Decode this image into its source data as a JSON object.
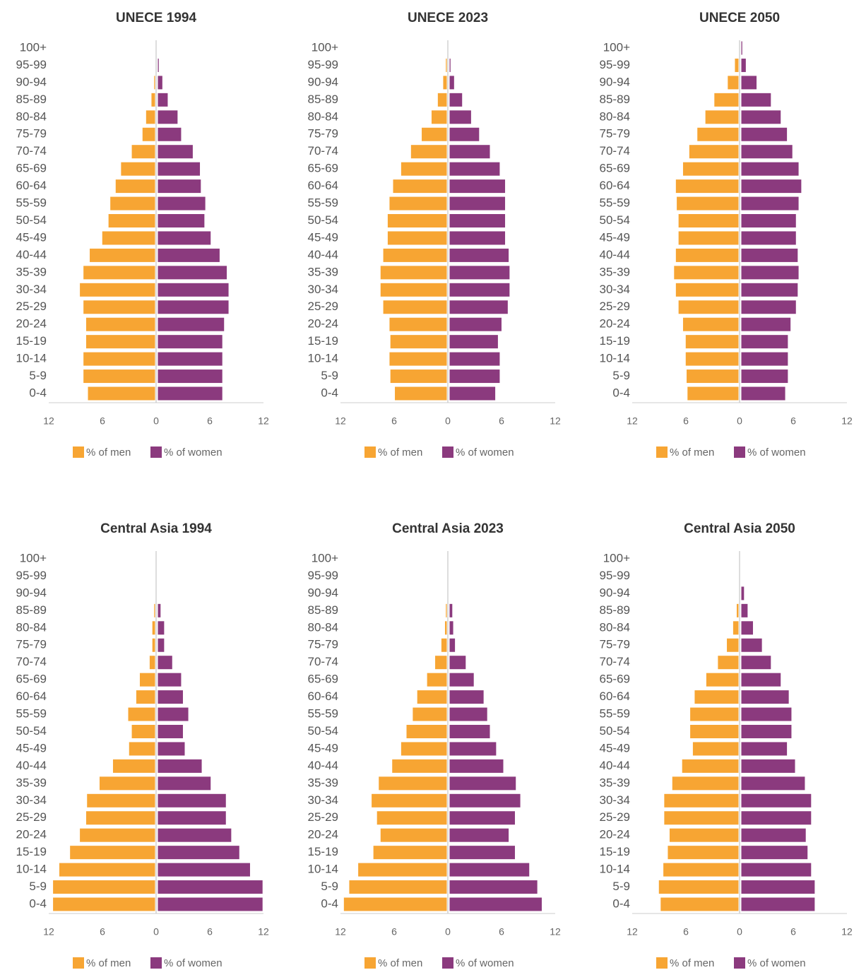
{
  "chart_data": [
    {
      "type": "pyramid",
      "title": "UNECE 1994",
      "categories": [
        "100+",
        "95-99",
        "90-94",
        "85-89",
        "80-84",
        "75-79",
        "70-74",
        "65-69",
        "60-64",
        "55-59",
        "50-54",
        "45-49",
        "40-44",
        "35-39",
        "30-34",
        "25-29",
        "20-24",
        "15-19",
        "10-14",
        "5-9",
        "0-4"
      ],
      "series": [
        {
          "name": "% of men",
          "color": "#f7a533",
          "values": [
            0,
            0,
            -0.1,
            -0.4,
            -1.0,
            -1.4,
            -2.6,
            -3.8,
            -4.4,
            -5.0,
            -5.2,
            -5.9,
            -7.3,
            -8.0,
            -8.4,
            -8.0,
            -7.7,
            -7.7,
            -8.0,
            -8.0,
            -7.5
          ]
        },
        {
          "name": "% of women",
          "color": "#8b3a7e",
          "values": [
            0,
            0.1,
            0.5,
            1.1,
            2.2,
            2.6,
            3.9,
            4.7,
            4.8,
            5.3,
            5.2,
            5.9,
            6.9,
            7.7,
            7.9,
            7.9,
            7.4,
            7.2,
            7.2,
            7.2,
            7.2
          ]
        }
      ],
      "xlim": [
        -12,
        12
      ],
      "xticks": [
        {
          "value": -12,
          "label": "12"
        },
        {
          "value": -6,
          "label": "6"
        },
        0,
        6,
        12
      ]
    },
    {
      "type": "pyramid",
      "title": "UNECE 2023",
      "categories": [
        "100+",
        "95-99",
        "90-94",
        "85-89",
        "80-84",
        "75-79",
        "70-74",
        "65-69",
        "60-64",
        "55-59",
        "50-54",
        "45-49",
        "40-44",
        "35-39",
        "30-34",
        "25-29",
        "20-24",
        "15-19",
        "10-14",
        "5-9",
        "0-4"
      ],
      "series": [
        {
          "name": "% of men",
          "color": "#f7a533",
          "values": [
            0,
            -0.1,
            -0.4,
            -1.0,
            -1.7,
            -2.8,
            -4.0,
            -5.1,
            -6.0,
            -6.4,
            -6.6,
            -6.6,
            -7.1,
            -7.4,
            -7.4,
            -7.1,
            -6.4,
            -6.3,
            -6.4,
            -6.3,
            -5.8
          ]
        },
        {
          "name": "% of women",
          "color": "#8b3a7e",
          "values": [
            0,
            0.1,
            0.5,
            1.4,
            2.4,
            3.3,
            4.5,
            5.6,
            6.2,
            6.2,
            6.2,
            6.2,
            6.6,
            6.7,
            6.7,
            6.5,
            5.8,
            5.4,
            5.6,
            5.6,
            5.1
          ]
        }
      ],
      "xlim": [
        -12,
        12
      ],
      "xticks": [
        {
          "value": -12,
          "label": "12"
        },
        {
          "value": -6,
          "label": "6"
        },
        0,
        6,
        12
      ]
    },
    {
      "type": "pyramid",
      "title": "UNECE 2050",
      "categories": [
        "100+",
        "95-99",
        "90-94",
        "85-89",
        "80-84",
        "75-79",
        "70-74",
        "65-69",
        "60-64",
        "55-59",
        "50-54",
        "45-49",
        "40-44",
        "35-39",
        "30-34",
        "25-29",
        "20-24",
        "15-19",
        "10-14",
        "5-9",
        "0-4"
      ],
      "series": [
        {
          "name": "% of men",
          "color": "#f7a533",
          "values": [
            0,
            -0.4,
            -1.2,
            -2.7,
            -3.7,
            -4.6,
            -5.5,
            -6.2,
            -7.0,
            -6.9,
            -6.7,
            -6.7,
            -7.0,
            -7.2,
            -7.0,
            -6.7,
            -6.2,
            -5.9,
            -5.9,
            -5.8,
            -5.7
          ]
        },
        {
          "name": "% of women",
          "color": "#8b3a7e",
          "values": [
            0.1,
            0.5,
            1.7,
            3.3,
            4.4,
            5.1,
            5.7,
            6.4,
            6.7,
            6.4,
            6.1,
            6.1,
            6.3,
            6.4,
            6.3,
            6.1,
            5.5,
            5.2,
            5.2,
            5.2,
            4.9
          ]
        }
      ],
      "xlim": [
        -12,
        12
      ],
      "xticks": [
        {
          "value": -12,
          "label": "12"
        },
        {
          "value": -6,
          "label": "6"
        },
        0,
        6,
        12
      ]
    },
    {
      "type": "pyramid",
      "title": "Central Asia 1994",
      "categories": [
        "100+",
        "95-99",
        "90-94",
        "85-89",
        "80-84",
        "75-79",
        "70-74",
        "65-69",
        "60-64",
        "55-59",
        "50-54",
        "45-49",
        "40-44",
        "35-39",
        "30-34",
        "25-29",
        "20-24",
        "15-19",
        "10-14",
        "5-9",
        "0-4"
      ],
      "series": [
        {
          "name": "% of men",
          "color": "#f7a533",
          "values": [
            0,
            0,
            0,
            -0.1,
            -0.3,
            -0.3,
            -0.6,
            -1.7,
            -2.1,
            -3.0,
            -2.6,
            -2.9,
            -4.7,
            -6.2,
            -7.6,
            -7.7,
            -8.4,
            -9.5,
            -10.7,
            -11.4,
            -11.4
          ]
        },
        {
          "name": "% of women",
          "color": "#8b3a7e",
          "values": [
            0,
            0,
            0,
            0.3,
            0.7,
            0.7,
            1.6,
            2.6,
            2.8,
            3.4,
            2.8,
            3.0,
            4.9,
            5.9,
            7.6,
            7.6,
            8.2,
            9.1,
            10.3,
            11.7,
            11.7
          ]
        }
      ],
      "xlim": [
        -12,
        12
      ],
      "xticks": [
        {
          "value": -12,
          "label": "12"
        },
        {
          "value": -6,
          "label": "6"
        },
        0,
        6,
        12
      ]
    },
    {
      "type": "pyramid",
      "title": "Central Asia 2023",
      "categories": [
        "100+",
        "95-99",
        "90-94",
        "85-89",
        "80-84",
        "75-79",
        "70-74",
        "65-69",
        "60-64",
        "55-59",
        "50-54",
        "45-49",
        "40-44",
        "35-39",
        "30-34",
        "25-29",
        "20-24",
        "15-19",
        "10-14",
        "5-9",
        "0-4"
      ],
      "series": [
        {
          "name": "% of men",
          "color": "#f7a533",
          "values": [
            0,
            0,
            0,
            -0.1,
            -0.2,
            -0.6,
            -1.3,
            -2.2,
            -3.3,
            -3.8,
            -4.5,
            -5.1,
            -6.1,
            -7.6,
            -8.4,
            -7.8,
            -7.4,
            -8.2,
            -9.9,
            -10.9,
            -11.5
          ]
        },
        {
          "name": "% of women",
          "color": "#8b3a7e",
          "values": [
            0,
            0,
            0,
            0.3,
            0.4,
            0.6,
            1.8,
            2.7,
            3.8,
            4.2,
            4.5,
            5.2,
            6.0,
            7.4,
            7.9,
            7.3,
            6.6,
            7.3,
            8.9,
            9.8,
            10.3
          ]
        }
      ],
      "xlim": [
        -12,
        12
      ],
      "xticks": [
        {
          "value": -12,
          "label": "12"
        },
        {
          "value": -6,
          "label": "6"
        },
        0,
        6,
        12
      ]
    },
    {
      "type": "pyramid",
      "title": "Central Asia 2050",
      "categories": [
        "100+",
        "95-99",
        "90-94",
        "85-89",
        "80-84",
        "75-79",
        "70-74",
        "65-69",
        "60-64",
        "55-59",
        "50-54",
        "45-49",
        "40-44",
        "35-39",
        "30-34",
        "25-29",
        "20-24",
        "15-19",
        "10-14",
        "5-9",
        "0-4"
      ],
      "series": [
        {
          "name": "% of men",
          "color": "#f7a533",
          "values": [
            0,
            0,
            0,
            -0.2,
            -0.6,
            -1.3,
            -2.3,
            -3.6,
            -4.9,
            -5.4,
            -5.4,
            -5.1,
            -6.3,
            -7.4,
            -8.3,
            -8.3,
            -7.7,
            -7.9,
            -8.4,
            -8.9,
            -8.7
          ]
        },
        {
          "name": "% of women",
          "color": "#8b3a7e",
          "values": [
            0,
            0,
            0.3,
            0.7,
            1.3,
            2.3,
            3.3,
            4.4,
            5.3,
            5.6,
            5.6,
            5.1,
            6.0,
            7.1,
            7.8,
            7.8,
            7.2,
            7.4,
            7.8,
            8.2,
            8.2
          ]
        }
      ],
      "xlim": [
        -12,
        12
      ],
      "xticks": [
        {
          "value": -12,
          "label": "12"
        },
        {
          "value": -6,
          "label": "6"
        },
        0,
        6,
        12
      ]
    }
  ]
}
